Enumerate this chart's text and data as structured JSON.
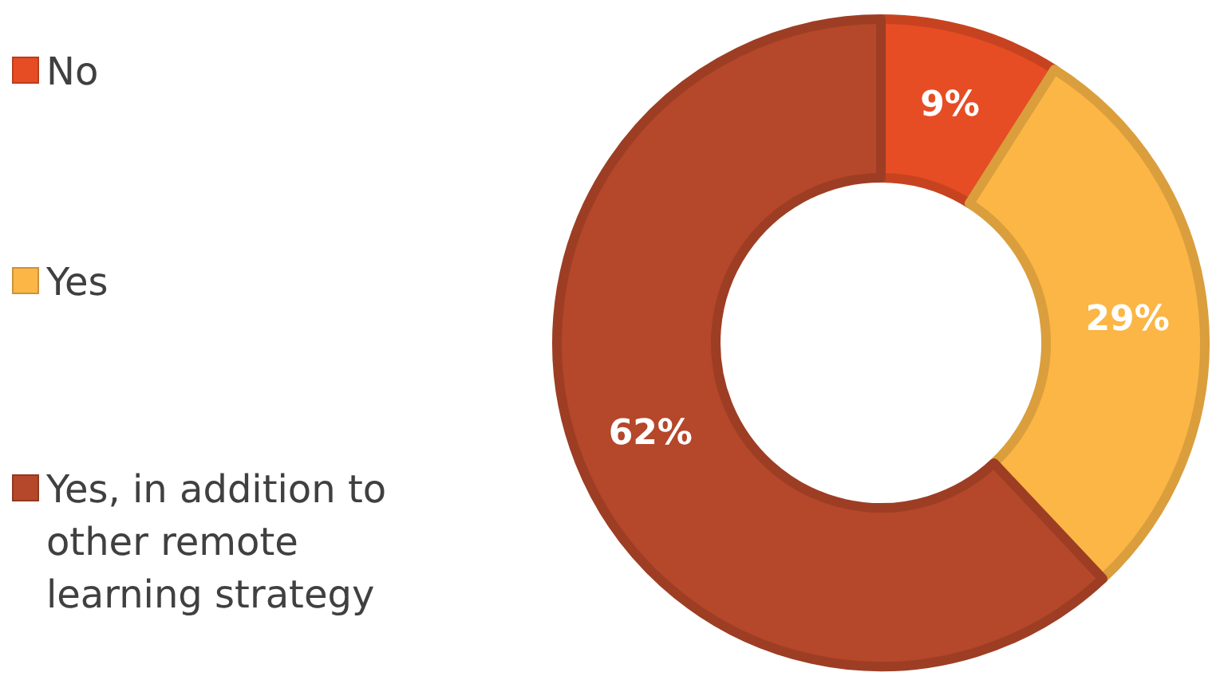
{
  "chart_data": {
    "type": "donut",
    "categories": [
      "No",
      "Yes",
      "Yes, in addition to other remote learning strategy"
    ],
    "values": [
      9,
      29,
      62
    ],
    "colors": [
      "#e64d25",
      "#fbb646",
      "#b5472a"
    ],
    "value_labels": [
      "9%",
      "29%",
      "62%"
    ],
    "legend": "left"
  }
}
